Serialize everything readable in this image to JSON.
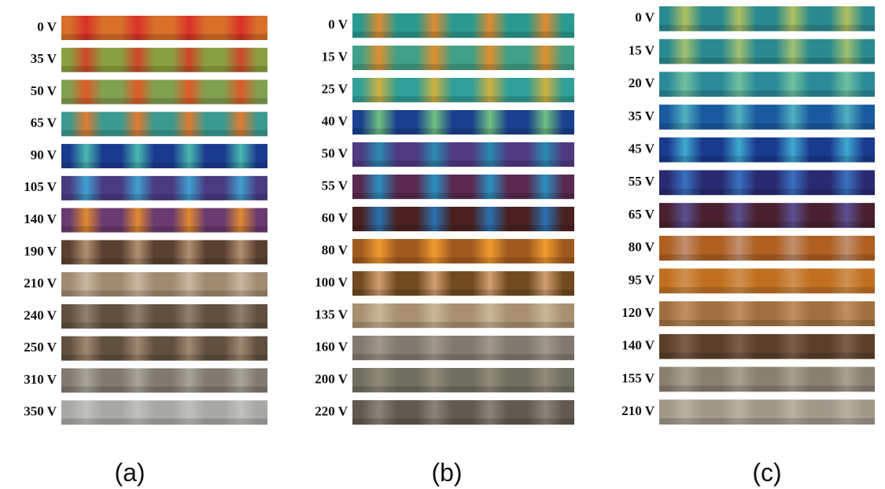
{
  "panels": [
    {
      "caption": "(a)",
      "rows": [
        "0 V",
        "35 V",
        "50 V",
        "65 V",
        "90 V",
        "105 V",
        "140 V",
        "190 V",
        "210 V",
        "240 V",
        "250 V",
        "310 V",
        "350 V"
      ]
    },
    {
      "caption": "(b)",
      "rows": [
        "0 V",
        "15 V",
        "25 V",
        "40 V",
        "50 V",
        "55 V",
        "60 V",
        "80 V",
        "100 V",
        "135 V",
        "160 V",
        "200 V",
        "220 V"
      ]
    },
    {
      "caption": "(c)",
      "rows": [
        "0 V",
        "15 V",
        "20 V",
        "35 V",
        "45 V",
        "55 V",
        "65 V",
        "80 V",
        "95 V",
        "120 V",
        "140 V",
        "155 V",
        "210 V"
      ]
    }
  ]
}
